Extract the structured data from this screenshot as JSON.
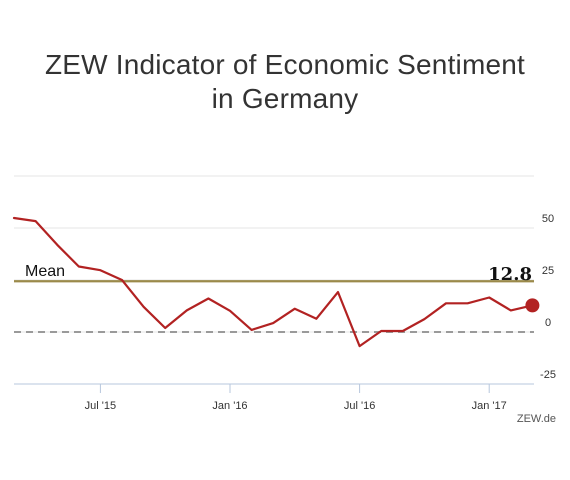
{
  "chart_data": {
    "type": "line",
    "title_lines": [
      "ZEW Indicator of Economic Sentiment",
      "in Germany"
    ],
    "x": [
      "2015-03",
      "2015-04",
      "2015-05",
      "2015-06",
      "2015-07",
      "2015-08",
      "2015-09",
      "2015-10",
      "2015-11",
      "2015-12",
      "2016-01",
      "2016-02",
      "2016-03",
      "2016-04",
      "2016-05",
      "2016-06",
      "2016-07",
      "2016-08",
      "2016-09",
      "2016-10",
      "2016-11",
      "2016-12",
      "2017-01",
      "2017-02",
      "2017-03"
    ],
    "series": [
      {
        "values": [
          54.8,
          53.3,
          41.9,
          31.5,
          29.7,
          25.0,
          12.1,
          1.9,
          10.4,
          16.1,
          10.2,
          1.0,
          4.3,
          11.2,
          6.4,
          19.2,
          -6.8,
          0.5,
          0.5,
          6.2,
          13.8,
          13.8,
          16.6,
          10.4,
          12.8
        ],
        "color": "#b22222"
      }
    ],
    "mean": {
      "label": "Mean",
      "value": 24.4,
      "color": "#9b8a4a"
    },
    "zero_line": {
      "value": 0,
      "style": "dashed",
      "color": "#9a9a9a"
    },
    "last_value_label": "12.8",
    "y_axis": {
      "ticks": [
        "50",
        "25",
        "0",
        "-25"
      ],
      "tick_values": [
        50,
        25,
        0,
        -25
      ],
      "side": "right",
      "ylim": [
        -25,
        75
      ]
    },
    "x_axis": {
      "ticks": [
        {
          "label": "Jul '15",
          "date": "2015-07"
        },
        {
          "label": "Jan '16",
          "date": "2016-01"
        },
        {
          "label": "Jul '16",
          "date": "2016-07"
        },
        {
          "label": "Jan '17",
          "date": "2017-01"
        }
      ]
    },
    "grid": true,
    "source": "ZEW.de"
  }
}
